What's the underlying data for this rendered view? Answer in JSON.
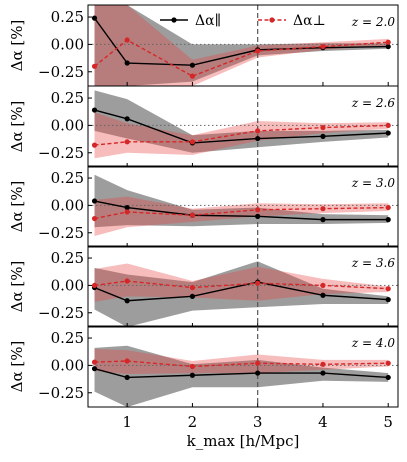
{
  "colors": {
    "parallel": "#000000",
    "perp": "#d62728",
    "band_parallel": "#4d4d4d",
    "band_perp": "#e8423e",
    "vline": "#555555",
    "zero_line": "#666666"
  },
  "legend": {
    "parallel": "Δα∥",
    "perp": "Δα⊥"
  },
  "x_label": "k_max [h/Mpc]",
  "y_label": "Δα [%]",
  "chart_data": {
    "type": "line",
    "x": [
      0.5,
      1,
      2,
      3,
      4,
      5
    ],
    "xlim": [
      0.4,
      5.15
    ],
    "ylim": [
      -0.38,
      0.36
    ],
    "xticks": [
      1,
      2,
      3,
      4,
      5
    ],
    "yticks": [
      0.25,
      0.0,
      -0.25
    ],
    "xtick_labels": [
      "1",
      "2",
      "3",
      "4",
      "5"
    ],
    "ytick_labels": [
      "0.25",
      "0.00",
      "−0.25"
    ],
    "vline_x": 3,
    "grid": false,
    "legend_position": "top",
    "panels": [
      {
        "z_label": "z = 2.0",
        "series": [
          {
            "name": "Δα∥",
            "values": [
              0.24,
              -0.17,
              -0.19,
              -0.05,
              -0.03,
              -0.02
            ],
            "lower": [
              -0.38,
              -0.38,
              -0.34,
              -0.1,
              -0.06,
              -0.04
            ],
            "upper": [
              0.36,
              0.36,
              0.0,
              0.0,
              0.01,
              0.01
            ]
          },
          {
            "name": "Δα⊥",
            "values": [
              -0.2,
              0.04,
              -0.29,
              -0.06,
              -0.02,
              0.02
            ],
            "lower": [
              -0.38,
              -0.38,
              -0.38,
              -0.12,
              -0.05,
              -0.01
            ],
            "upper": [
              0.36,
              0.36,
              -0.14,
              -0.01,
              0.02,
              0.05
            ]
          }
        ]
      },
      {
        "z_label": "z = 2.6",
        "series": [
          {
            "name": "Δα∥",
            "values": [
              0.14,
              0.06,
              -0.16,
              -0.12,
              -0.1,
              -0.07
            ],
            "lower": [
              -0.05,
              -0.12,
              -0.25,
              -0.2,
              -0.15,
              -0.11
            ],
            "upper": [
              0.32,
              0.24,
              -0.09,
              -0.05,
              -0.05,
              -0.04
            ]
          },
          {
            "name": "Δα⊥",
            "values": [
              -0.18,
              -0.15,
              -0.15,
              -0.05,
              -0.02,
              0.0
            ],
            "lower": [
              -0.3,
              -0.25,
              -0.27,
              -0.14,
              -0.07,
              -0.03
            ],
            "upper": [
              0.12,
              0.02,
              -0.09,
              0.04,
              0.02,
              0.03
            ]
          }
        ]
      },
      {
        "z_label": "z = 3.0",
        "series": [
          {
            "name": "Δα∥",
            "values": [
              0.04,
              -0.02,
              -0.09,
              -0.1,
              -0.13,
              -0.13
            ],
            "lower": [
              -0.2,
              -0.18,
              -0.19,
              -0.17,
              -0.17,
              -0.16
            ],
            "upper": [
              0.28,
              0.14,
              -0.04,
              -0.02,
              -0.08,
              -0.09
            ]
          },
          {
            "name": "Δα⊥",
            "values": [
              -0.12,
              -0.06,
              -0.09,
              -0.04,
              -0.03,
              -0.02
            ],
            "lower": [
              -0.28,
              -0.2,
              -0.15,
              -0.1,
              -0.07,
              -0.05
            ],
            "upper": [
              0.05,
              0.08,
              -0.03,
              0.02,
              0.01,
              0.02
            ]
          }
        ]
      },
      {
        "z_label": "z = 3.6",
        "series": [
          {
            "name": "Δα∥",
            "values": [
              -0.02,
              -0.14,
              -0.1,
              0.03,
              -0.09,
              -0.13
            ],
            "lower": [
              -0.22,
              -0.38,
              -0.23,
              -0.2,
              -0.17,
              -0.17
            ],
            "upper": [
              0.16,
              0.1,
              0.03,
              0.22,
              -0.03,
              -0.1
            ]
          },
          {
            "name": "Δα⊥",
            "values": [
              0.0,
              0.04,
              -0.02,
              0.02,
              0.0,
              -0.03
            ],
            "lower": [
              -0.15,
              -0.1,
              -0.11,
              -0.14,
              -0.08,
              -0.06
            ],
            "upper": [
              0.15,
              0.2,
              0.04,
              0.17,
              0.06,
              -0.01
            ]
          }
        ]
      },
      {
        "z_label": "z = 4.0",
        "series": [
          {
            "name": "Δα∥",
            "values": [
              -0.03,
              -0.11,
              -0.09,
              -0.07,
              -0.07,
              -0.11
            ],
            "lower": [
              -0.24,
              -0.38,
              -0.2,
              -0.2,
              -0.14,
              -0.15
            ],
            "upper": [
              0.16,
              0.18,
              0.01,
              0.05,
              -0.02,
              -0.07
            ]
          },
          {
            "name": "Δα⊥",
            "values": [
              0.03,
              0.04,
              -0.01,
              0.02,
              0.01,
              0.02
            ],
            "lower": [
              -0.05,
              -0.08,
              -0.07,
              -0.07,
              -0.04,
              -0.01
            ],
            "upper": [
              0.15,
              0.14,
              0.04,
              0.1,
              0.05,
              0.05
            ]
          }
        ]
      }
    ]
  }
}
